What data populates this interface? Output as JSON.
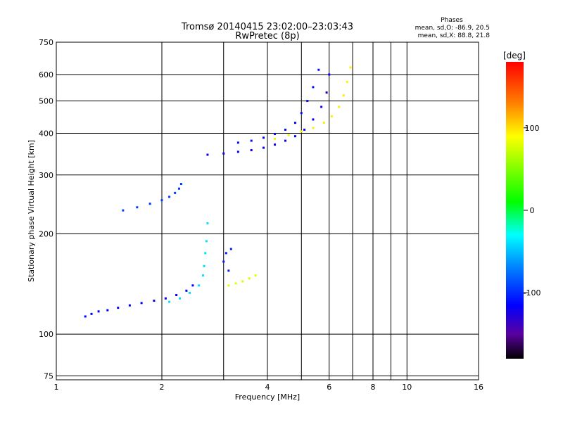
{
  "title": "Tromsø 20140415 23:02:00–23:03:43",
  "subtitle": "RwPretec (8p)",
  "stats": {
    "heading": "Phases",
    "line_o": "mean, sd,O: -86.9, 20.5",
    "line_x": "mean, sd,X:  88.8, 21.8"
  },
  "chart_data": {
    "type": "scatter",
    "xlabel": "Frequency [MHz]",
    "ylabel": "Stationary phase Virtual Height [km]",
    "x_scale": "log2",
    "y_scale": "log",
    "xlim": [
      1,
      16
    ],
    "ylim": [
      73,
      750
    ],
    "x_ticks": [
      1,
      2,
      4,
      6,
      8,
      10,
      16
    ],
    "x_tick_labels": [
      "1",
      "2",
      "4",
      "6",
      "8",
      "10",
      "16"
    ],
    "x_grid_extra": [
      3,
      5,
      7,
      9
    ],
    "y_ticks": [
      75,
      100,
      200,
      300,
      400,
      500,
      600,
      750
    ],
    "y_tick_labels": [
      "75",
      "100",
      "200",
      "300",
      "400",
      "500",
      "600",
      "750"
    ],
    "grid": true,
    "colorbar": {
      "label": "[deg]",
      "min": -180,
      "max": 180,
      "tick_values": [
        -100,
        0,
        100
      ],
      "tick_labels": [
        "-100",
        "0",
        "100"
      ],
      "stops": [
        {
          "v": -180,
          "c": "#000000"
        },
        {
          "v": -150,
          "c": "#5a00a0"
        },
        {
          "v": -115,
          "c": "#0000ff"
        },
        {
          "v": -70,
          "c": "#0080ff"
        },
        {
          "v": -30,
          "c": "#00ffff"
        },
        {
          "v": 10,
          "c": "#00ff00"
        },
        {
          "v": 90,
          "c": "#ffff00"
        },
        {
          "v": 130,
          "c": "#ff8000"
        },
        {
          "v": 180,
          "c": "#ff0000"
        }
      ]
    },
    "series": [
      {
        "phase": -115,
        "x": [
          1.21,
          1.26,
          1.32,
          1.4,
          1.5,
          1.62,
          1.75,
          1.9,
          2.05,
          2.2,
          2.35,
          2.45
        ],
        "y": [
          113,
          115,
          117,
          118,
          120,
          122,
          124,
          126,
          128,
          131,
          135,
          140
        ]
      },
      {
        "phase": -95,
        "x": [
          1.55,
          1.7,
          1.85,
          2.0,
          2.1,
          2.18,
          2.24,
          2.27
        ],
        "y": [
          235,
          240,
          246,
          252,
          258,
          265,
          273,
          282
        ]
      },
      {
        "phase": -40,
        "x": [
          2.1,
          2.25,
          2.4,
          2.55,
          2.62,
          2.64,
          2.66,
          2.68,
          2.7
        ],
        "y": [
          125,
          128,
          133,
          140,
          150,
          160,
          175,
          190,
          215
        ]
      },
      {
        "phase": -120,
        "x": [
          2.7,
          3.0,
          3.3,
          3.6,
          3.9,
          4.2,
          4.5,
          4.8,
          5.1,
          5.4,
          5.7,
          5.9,
          6.0
        ],
        "y": [
          345,
          348,
          352,
          356,
          362,
          370,
          380,
          392,
          410,
          440,
          480,
          530,
          600
        ]
      },
      {
        "phase": -110,
        "x": [
          3.3,
          3.6,
          3.9,
          4.2,
          4.5,
          4.8,
          5.0,
          5.2,
          5.4,
          5.6
        ],
        "y": [
          375,
          380,
          388,
          398,
          410,
          430,
          460,
          500,
          550,
          620
        ]
      },
      {
        "phase": 95,
        "x": [
          4.2,
          4.6,
          5.0,
          5.4,
          5.8,
          6.1,
          6.4,
          6.6,
          6.75,
          6.9
        ],
        "y": [
          385,
          395,
          405,
          415,
          430,
          450,
          480,
          520,
          570,
          630
        ]
      },
      {
        "phase": 80,
        "x": [
          3.1,
          3.25,
          3.4,
          3.55,
          3.7
        ],
        "y": [
          140,
          142,
          144,
          147,
          150
        ]
      },
      {
        "phase": -105,
        "x": [
          3.0,
          3.05,
          3.1,
          3.15
        ],
        "y": [
          165,
          175,
          155,
          180
        ]
      }
    ]
  }
}
